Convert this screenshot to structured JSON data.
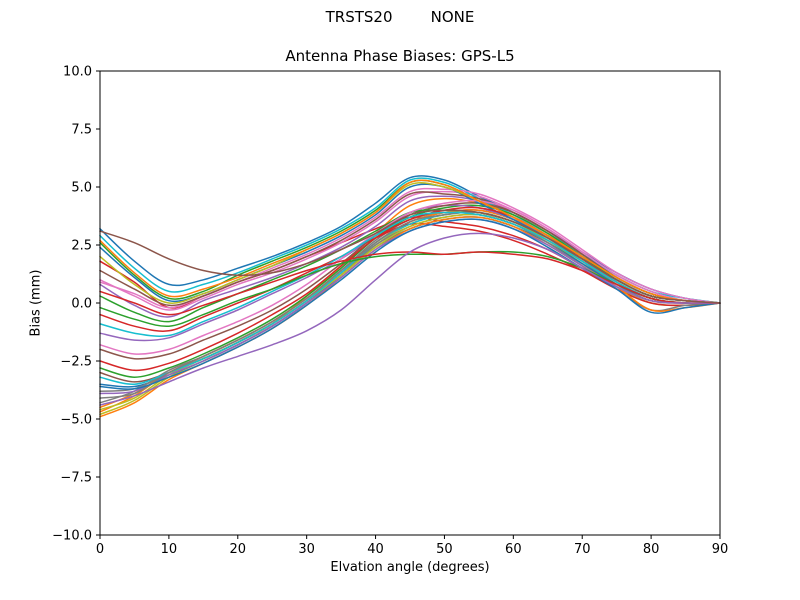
{
  "figure": {
    "suptitle": "TRSTS20        NONE",
    "title": "Antenna Phase Biases: GPS-L5",
    "xlabel": "Elvation angle (degrees)",
    "ylabel": "Bias (mm)"
  },
  "chart_data": {
    "type": "line",
    "suptitle": "TRSTS20        NONE",
    "title": "Antenna Phase Biases: GPS-L5",
    "xlabel": "Elvation angle (degrees)",
    "ylabel": "Bias (mm)",
    "xlim": [
      0,
      90
    ],
    "ylim": [
      -10,
      10
    ],
    "x_ticks": [
      0,
      10,
      20,
      30,
      40,
      50,
      60,
      70,
      80,
      90
    ],
    "y_ticks": [
      -10.0,
      -7.5,
      -5.0,
      -2.5,
      0.0,
      2.5,
      5.0,
      7.5,
      10.0
    ],
    "grid": false,
    "legend": false,
    "axes_color": "#000000",
    "background": "#ffffff",
    "x": [
      0,
      5,
      10,
      15,
      20,
      25,
      30,
      35,
      40,
      45,
      50,
      55,
      60,
      65,
      70,
      75,
      80,
      85,
      90
    ],
    "series": [
      {
        "name": "line-01",
        "color": "#1f77b4",
        "values": [
          3.2,
          1.8,
          0.8,
          1.0,
          1.5,
          2.0,
          2.6,
          3.3,
          4.3,
          5.4,
          5.3,
          4.6,
          3.9,
          3.1,
          2.2,
          1.3,
          0.6,
          0.2,
          0.0
        ]
      },
      {
        "name": "line-02",
        "color": "#ff7f0e",
        "values": [
          -4.7,
          -4.0,
          -3.0,
          -2.4,
          -1.7,
          -0.9,
          0.3,
          1.6,
          3.0,
          4.2,
          4.5,
          4.3,
          3.8,
          3.0,
          2.0,
          1.0,
          0.3,
          0.1,
          0.0
        ]
      },
      {
        "name": "line-03",
        "color": "#2ca02c",
        "values": [
          2.6,
          1.2,
          0.2,
          0.5,
          1.2,
          1.8,
          2.4,
          3.1,
          4.0,
          5.2,
          5.1,
          4.4,
          3.7,
          2.9,
          2.0,
          1.1,
          0.4,
          0.1,
          0.0
        ]
      },
      {
        "name": "line-04",
        "color": "#d62728",
        "values": [
          1.8,
          0.9,
          -0.2,
          0.3,
          0.9,
          1.4,
          2.0,
          2.6,
          3.2,
          3.7,
          3.5,
          3.3,
          2.9,
          2.3,
          1.5,
          0.7,
          0.1,
          0.0,
          0.0
        ]
      },
      {
        "name": "line-05",
        "color": "#9467bd",
        "values": [
          0.8,
          -0.1,
          -0.6,
          0.1,
          0.6,
          1.1,
          1.7,
          2.4,
          3.3,
          4.4,
          4.6,
          4.4,
          3.9,
          3.1,
          2.1,
          1.1,
          0.4,
          0.1,
          0.0
        ]
      },
      {
        "name": "line-06",
        "color": "#8c564b",
        "values": [
          -3.0,
          -3.4,
          -3.0,
          -2.4,
          -1.7,
          -0.9,
          0.1,
          1.3,
          2.6,
          3.5,
          3.9,
          4.0,
          3.6,
          2.8,
          1.8,
          0.8,
          0.1,
          0.0,
          0.0
        ]
      },
      {
        "name": "line-07",
        "color": "#e377c2",
        "values": [
          1.0,
          0.3,
          -0.3,
          0.2,
          0.8,
          1.3,
          1.9,
          2.6,
          3.5,
          4.6,
          4.8,
          4.6,
          4.0,
          3.2,
          2.2,
          1.2,
          0.5,
          0.1,
          0.0
        ]
      },
      {
        "name": "line-08",
        "color": "#7f7f7f",
        "values": [
          -4.3,
          -3.8,
          -2.9,
          -2.3,
          -1.6,
          -0.8,
          0.2,
          1.4,
          2.7,
          3.6,
          3.9,
          3.8,
          3.4,
          2.7,
          1.8,
          0.8,
          0.1,
          0.0,
          0.0
        ]
      },
      {
        "name": "line-09",
        "color": "#bcbd22",
        "values": [
          -4.8,
          -4.2,
          -3.2,
          -2.5,
          -1.8,
          -1.0,
          0.0,
          1.2,
          2.5,
          3.4,
          3.8,
          3.9,
          3.5,
          2.7,
          1.7,
          0.7,
          0.0,
          -0.1,
          0.0
        ]
      },
      {
        "name": "line-10",
        "color": "#17becf",
        "values": [
          2.9,
          1.5,
          0.5,
          0.8,
          1.3,
          1.9,
          2.5,
          3.2,
          4.1,
          5.3,
          5.2,
          4.5,
          3.8,
          3.0,
          2.1,
          1.2,
          0.5,
          0.2,
          0.0
        ]
      },
      {
        "name": "line-11",
        "color": "#1f77b4",
        "values": [
          -3.5,
          -3.6,
          -3.1,
          -2.5,
          -1.8,
          -1.0,
          0.0,
          1.2,
          2.4,
          3.2,
          3.6,
          3.7,
          3.3,
          2.6,
          1.7,
          0.8,
          0.2,
          0.0,
          0.0
        ]
      },
      {
        "name": "line-12",
        "color": "#ff7f0e",
        "values": [
          -4.5,
          -3.9,
          -3.0,
          -2.3,
          -1.6,
          -0.8,
          0.2,
          1.3,
          2.6,
          3.5,
          3.9,
          4.0,
          3.6,
          2.9,
          2.0,
          1.0,
          0.3,
          0.1,
          0.0
        ]
      },
      {
        "name": "line-13",
        "color": "#2ca02c",
        "values": [
          -2.8,
          -3.2,
          -2.8,
          -2.2,
          -1.5,
          -0.7,
          0.3,
          1.5,
          2.8,
          3.7,
          4.1,
          4.2,
          3.8,
          3.0,
          2.0,
          1.0,
          0.3,
          0.1,
          0.0
        ]
      },
      {
        "name": "line-14",
        "color": "#d62728",
        "values": [
          -0.5,
          -1.0,
          -1.2,
          -0.6,
          0.0,
          0.6,
          1.3,
          2.0,
          2.8,
          3.4,
          3.3,
          3.1,
          2.7,
          2.1,
          1.4,
          0.6,
          0.0,
          -0.1,
          0.0
        ]
      },
      {
        "name": "line-15",
        "color": "#9467bd",
        "values": [
          -1.3,
          -1.6,
          -1.5,
          -0.9,
          -0.3,
          0.4,
          1.1,
          1.9,
          2.9,
          3.9,
          4.2,
          4.1,
          3.6,
          2.8,
          1.9,
          0.9,
          0.2,
          0.0,
          0.0
        ]
      },
      {
        "name": "line-16",
        "color": "#8c564b",
        "values": [
          -2.0,
          -2.4,
          -2.2,
          -1.6,
          -1.0,
          -0.3,
          0.6,
          1.7,
          2.9,
          3.8,
          4.2,
          4.3,
          3.9,
          3.1,
          2.1,
          1.1,
          0.4,
          0.1,
          0.0
        ]
      },
      {
        "name": "line-17",
        "color": "#e377c2",
        "values": [
          0.9,
          0.4,
          -0.2,
          0.3,
          0.9,
          1.5,
          2.1,
          2.8,
          3.7,
          4.8,
          4.9,
          4.7,
          4.1,
          3.3,
          2.3,
          1.3,
          0.6,
          0.2,
          0.0
        ]
      },
      {
        "name": "line-18",
        "color": "#7f7f7f",
        "values": [
          -3.8,
          -3.7,
          -3.0,
          -2.4,
          -1.7,
          -0.9,
          0.1,
          1.3,
          2.5,
          3.3,
          3.7,
          3.8,
          3.4,
          2.6,
          1.6,
          0.6,
          -0.3,
          -0.1,
          0.0
        ]
      },
      {
        "name": "line-19",
        "color": "#bcbd22",
        "values": [
          -4.6,
          -4.1,
          -3.1,
          -2.4,
          -1.7,
          -0.9,
          0.1,
          1.2,
          2.4,
          3.3,
          3.7,
          3.8,
          3.4,
          2.7,
          1.8,
          0.9,
          0.2,
          0.0,
          0.0
        ]
      },
      {
        "name": "line-20",
        "color": "#17becf",
        "values": [
          -3.2,
          -3.5,
          -3.0,
          -2.4,
          -1.7,
          -0.9,
          0.1,
          1.3,
          2.6,
          3.4,
          3.8,
          3.9,
          3.5,
          2.8,
          1.9,
          1.0,
          0.3,
          0.1,
          0.0
        ]
      },
      {
        "name": "line-21",
        "color": "#1f77b4",
        "values": [
          2.4,
          1.1,
          0.1,
          0.4,
          1.0,
          1.6,
          2.2,
          2.9,
          3.8,
          5.0,
          5.0,
          4.3,
          3.6,
          2.8,
          1.9,
          1.0,
          0.3,
          0.1,
          0.0
        ]
      },
      {
        "name": "line-22",
        "color": "#ff7f0e",
        "values": [
          -4.9,
          -4.3,
          -3.3,
          -2.6,
          -1.9,
          -1.1,
          -0.1,
          1.1,
          2.3,
          3.2,
          3.6,
          3.7,
          3.3,
          2.5,
          1.6,
          0.7,
          -0.3,
          -0.2,
          0.0
        ]
      },
      {
        "name": "line-23",
        "color": "#2ca02c",
        "values": [
          0.3,
          -0.4,
          -0.8,
          -0.2,
          0.4,
          1.0,
          1.6,
          2.3,
          3.1,
          3.9,
          4.0,
          3.9,
          3.5,
          2.8,
          1.9,
          1.0,
          0.3,
          0.1,
          0.0
        ]
      },
      {
        "name": "line-24",
        "color": "#d62728",
        "values": [
          -2.5,
          -2.9,
          -2.6,
          -2.0,
          -1.3,
          -0.5,
          0.4,
          1.6,
          2.8,
          3.6,
          4.0,
          4.1,
          3.7,
          2.9,
          1.9,
          0.9,
          0.2,
          0.0,
          0.0
        ]
      },
      {
        "name": "line-25",
        "color": "#9467bd",
        "values": [
          -3.9,
          -3.8,
          -3.1,
          -2.5,
          -1.8,
          -1.0,
          0.0,
          1.1,
          2.3,
          3.1,
          3.5,
          3.6,
          3.2,
          2.5,
          1.6,
          0.7,
          0.1,
          0.0,
          0.0
        ]
      },
      {
        "name": "line-26",
        "color": "#8c564b",
        "values": [
          1.4,
          0.6,
          -0.1,
          0.3,
          0.9,
          1.4,
          2.0,
          2.7,
          3.6,
          4.7,
          4.7,
          4.5,
          3.9,
          3.1,
          2.1,
          1.1,
          0.4,
          0.1,
          0.0
        ]
      },
      {
        "name": "line-27",
        "color": "#e377c2",
        "values": [
          -1.8,
          -2.2,
          -2.0,
          -1.4,
          -0.8,
          -0.1,
          0.8,
          1.9,
          3.0,
          3.9,
          4.3,
          4.4,
          4.0,
          3.2,
          2.2,
          1.2,
          0.5,
          0.1,
          0.0
        ]
      },
      {
        "name": "line-28",
        "color": "#7f7f7f",
        "values": [
          -4.1,
          -3.9,
          -3.0,
          -2.3,
          -1.6,
          -0.8,
          0.2,
          1.4,
          2.6,
          3.5,
          3.8,
          3.9,
          3.5,
          2.8,
          1.9,
          0.9,
          0.2,
          0.0,
          0.0
        ]
      },
      {
        "name": "line-29",
        "color": "#bcbd22",
        "values": [
          2.0,
          0.8,
          0.0,
          0.4,
          1.0,
          1.6,
          2.3,
          3.0,
          3.9,
          5.1,
          5.0,
          4.4,
          3.7,
          2.9,
          2.0,
          1.1,
          0.4,
          0.1,
          0.0
        ]
      },
      {
        "name": "line-30",
        "color": "#17becf",
        "values": [
          -0.9,
          -1.3,
          -1.4,
          -0.8,
          -0.2,
          0.5,
          1.2,
          2.0,
          2.9,
          3.7,
          3.9,
          3.8,
          3.4,
          2.7,
          1.8,
          0.9,
          0.2,
          0.0,
          0.0
        ]
      },
      {
        "name": "line-31",
        "color": "#1f77b4",
        "values": [
          -3.6,
          -3.7,
          -3.2,
          -2.6,
          -1.9,
          -1.1,
          -0.1,
          1.0,
          2.2,
          3.1,
          3.5,
          3.6,
          3.2,
          2.4,
          1.5,
          0.6,
          -0.4,
          -0.2,
          0.0
        ]
      },
      {
        "name": "line-32",
        "color": "#ff7f0e",
        "values": [
          2.7,
          1.3,
          0.3,
          0.6,
          1.1,
          1.7,
          2.3,
          3.0,
          3.9,
          5.2,
          5.1,
          4.4,
          3.7,
          2.9,
          2.0,
          1.1,
          0.4,
          0.1,
          0.0
        ]
      },
      {
        "name": "line-33",
        "color": "#2ca02c",
        "values": [
          -0.2,
          -0.7,
          -1.0,
          -0.5,
          0.1,
          0.6,
          1.2,
          1.7,
          2.0,
          2.1,
          2.1,
          2.2,
          2.2,
          2.0,
          1.5,
          0.8,
          0.2,
          0.0,
          0.0
        ]
      },
      {
        "name": "line-34",
        "color": "#d62728",
        "values": [
          0.5,
          0.0,
          -0.5,
          -0.1,
          0.4,
          0.9,
          1.4,
          1.8,
          2.1,
          2.2,
          2.1,
          2.2,
          2.1,
          1.9,
          1.4,
          0.8,
          0.2,
          0.0,
          0.0
        ]
      },
      {
        "name": "line-35",
        "color": "#9467bd",
        "values": [
          -4.4,
          -4.0,
          -3.4,
          -2.8,
          -2.3,
          -1.8,
          -1.2,
          -0.3,
          1.0,
          2.2,
          2.8,
          3.0,
          2.8,
          2.3,
          1.5,
          0.7,
          0.1,
          0.0,
          0.0
        ]
      },
      {
        "name": "line-36",
        "color": "#8c564b",
        "values": [
          3.1,
          2.6,
          1.9,
          1.4,
          1.2,
          1.3,
          1.7,
          2.3,
          3.0,
          3.8,
          4.0,
          3.9,
          3.5,
          2.8,
          1.9,
          1.0,
          0.3,
          0.1,
          0.0
        ]
      }
    ]
  }
}
